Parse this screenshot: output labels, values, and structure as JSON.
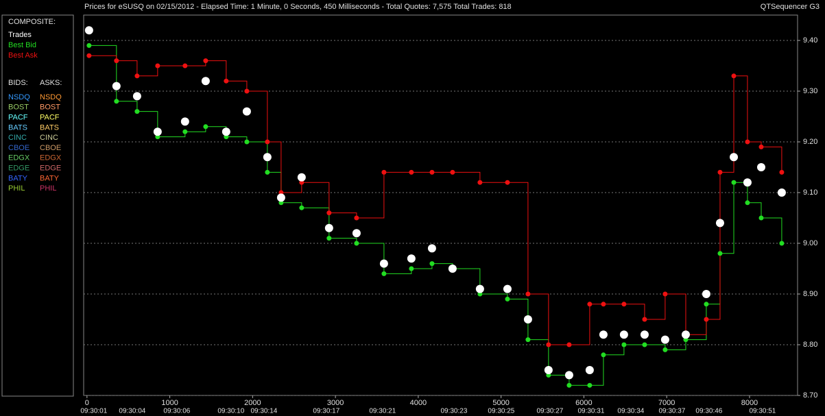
{
  "chart_data": {
    "type": "line",
    "title": "Prices for  eSUSQ  on  02/15/2012  -  Elapsed Time: 1 Minute, 0 Seconds, 450 Milliseconds  -  Total Quotes: 7,575  Total Trades: 818",
    "app_name": "QTSequencer G3",
    "composite_label": "COMPOSITE:",
    "bids_label": "BIDS:",
    "asks_label": "ASKS:",
    "venues": [
      {
        "name": "NSDQ",
        "bid_color": "#3399ff",
        "ask_color": "#ff9933"
      },
      {
        "name": "BOST",
        "bid_color": "#99cc66",
        "ask_color": "#ff9966"
      },
      {
        "name": "PACF",
        "bid_color": "#66ffff",
        "ask_color": "#ffff66"
      },
      {
        "name": "BATS",
        "bid_color": "#66ccff",
        "ask_color": "#ffcc66"
      },
      {
        "name": "CINC",
        "bid_color": "#33aaaa",
        "ask_color": "#cccc99"
      },
      {
        "name": "CBOE",
        "bid_color": "#3366cc",
        "ask_color": "#cc9966"
      },
      {
        "name": "EDGX",
        "bid_color": "#66cc66",
        "ask_color": "#cc6633"
      },
      {
        "name": "EDGE",
        "bid_color": "#339966",
        "ask_color": "#cc6666"
      },
      {
        "name": "BATY",
        "bid_color": "#3366ff",
        "ask_color": "#ff6633"
      },
      {
        "name": "PHIL",
        "bid_color": "#99cc33",
        "ask_color": "#cc3366"
      }
    ],
    "x": [
      25,
      356,
      605,
      853,
      1184,
      1433,
      1681,
      1930,
      2178,
      2344,
      2592,
      2923,
      3255,
      3586,
      3917,
      4166,
      4414,
      4745,
      5077,
      5325,
      5573,
      5822,
      6070,
      6236,
      6484,
      6733,
      6981,
      7230,
      7478,
      7644,
      7810,
      7975,
      8141,
      8389
    ],
    "series": [
      {
        "name": "Trades",
        "color": "#ffffff",
        "values": [
          9.42,
          9.31,
          9.29,
          9.22,
          9.24,
          9.32,
          9.22,
          9.26,
          9.17,
          9.09,
          9.13,
          9.03,
          9.02,
          8.96,
          8.97,
          8.99,
          8.95,
          8.91,
          8.91,
          8.85,
          8.75,
          8.74,
          8.75,
          8.82,
          8.82,
          8.82,
          8.81,
          8.82,
          8.9,
          9.04,
          9.17,
          9.12,
          9.15,
          9.1
        ]
      },
      {
        "name": "Best Bid",
        "color": "#22dd22",
        "values": [
          9.39,
          9.28,
          9.26,
          9.21,
          9.22,
          9.23,
          9.21,
          9.2,
          9.14,
          9.08,
          9.07,
          9.01,
          9.0,
          8.94,
          8.95,
          8.96,
          8.95,
          8.9,
          8.89,
          8.81,
          8.74,
          8.72,
          8.72,
          8.78,
          8.8,
          8.8,
          8.79,
          8.81,
          8.88,
          8.98,
          9.12,
          9.08,
          9.05,
          9.0
        ]
      },
      {
        "name": "Best Ask",
        "color": "#ee1111",
        "values": [
          9.37,
          9.36,
          9.33,
          9.35,
          9.35,
          9.36,
          9.32,
          9.3,
          9.2,
          9.1,
          9.12,
          9.06,
          9.05,
          9.14,
          9.14,
          9.14,
          9.14,
          9.12,
          9.12,
          8.9,
          8.8,
          8.8,
          8.88,
          8.88,
          8.88,
          8.85,
          8.9,
          8.82,
          8.85,
          9.14,
          9.33,
          9.2,
          9.19,
          9.14
        ]
      }
    ],
    "xlim": [
      -40,
      8580
    ],
    "ylim": [
      8.7,
      9.45
    ],
    "xticks": [
      0,
      1000,
      2000,
      3000,
      4000,
      5000,
      6000,
      7000,
      8000
    ],
    "yticks": [
      {
        "value": 8.7,
        "label": "8.70"
      },
      {
        "value": 8.8,
        "label": "8.80"
      },
      {
        "value": 8.9,
        "label": "8.90"
      },
      {
        "value": 9.0,
        "label": "9.00"
      },
      {
        "value": 9.1,
        "label": "9.10"
      },
      {
        "value": 9.2,
        "label": "9.20"
      },
      {
        "value": 9.3,
        "label": "9.30"
      },
      {
        "value": 9.4,
        "label": "9.40"
      }
    ],
    "time_ticks": [
      {
        "value": 83,
        "label": "09:30:01"
      },
      {
        "value": 547,
        "label": "09:30:04"
      },
      {
        "value": 1085,
        "label": "09:30:06"
      },
      {
        "value": 1739,
        "label": "09:30:10"
      },
      {
        "value": 2137,
        "label": "09:30:14"
      },
      {
        "value": 2890,
        "label": "09:30:17"
      },
      {
        "value": 3569,
        "label": "09:30:21"
      },
      {
        "value": 4431,
        "label": "09:30:23"
      },
      {
        "value": 5002,
        "label": "09:30:25"
      },
      {
        "value": 5590,
        "label": "09:30:27"
      },
      {
        "value": 6087,
        "label": "09:30:31"
      },
      {
        "value": 6567,
        "label": "09:30:34"
      },
      {
        "value": 7064,
        "label": "09:30:37"
      },
      {
        "value": 7511,
        "label": "09:30:46"
      },
      {
        "value": 8157,
        "label": "09:30:51"
      }
    ],
    "grid": true
  }
}
